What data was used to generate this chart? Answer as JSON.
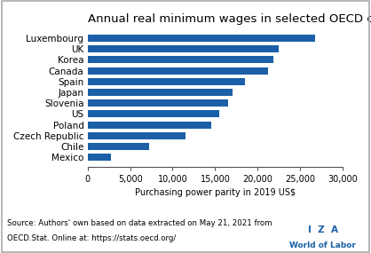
{
  "title": "Annual real minimum wages in selected OECD countries",
  "countries": [
    "Luxembourg",
    "UK",
    "Korea",
    "Canada",
    "Spain",
    "Japan",
    "Slovenia",
    "US",
    "Poland",
    "Czech Republic",
    "Chile",
    "Mexico"
  ],
  "values": [
    26800,
    22500,
    21800,
    21200,
    18500,
    17000,
    16500,
    15500,
    14500,
    11500,
    7200,
    2700
  ],
  "bar_color": "#1a5fa8",
  "xlabel": "Purchasing power parity in 2019 US$",
  "xlim": [
    0,
    30000
  ],
  "xticks": [
    0,
    5000,
    10000,
    15000,
    20000,
    25000,
    30000
  ],
  "xtick_labels": [
    "0",
    "5,000",
    "10,000",
    "15,000",
    "20,000",
    "25,000",
    "30,000"
  ],
  "source_text_line1": "Source: Authors' own based on data extracted on May 21, 2021 from",
  "source_text_line2": "OECD.Stat. Online at: https://stats.oecd.org/",
  "iza_text": "I  Z  A",
  "wol_text": "World of Labor",
  "border_color": "#aaaaaa",
  "title_fontsize": 9.5,
  "label_fontsize": 7.5,
  "tick_fontsize": 7,
  "source_fontsize": 6.2,
  "iza_fontsize": 7.5,
  "wol_fontsize": 6.5
}
